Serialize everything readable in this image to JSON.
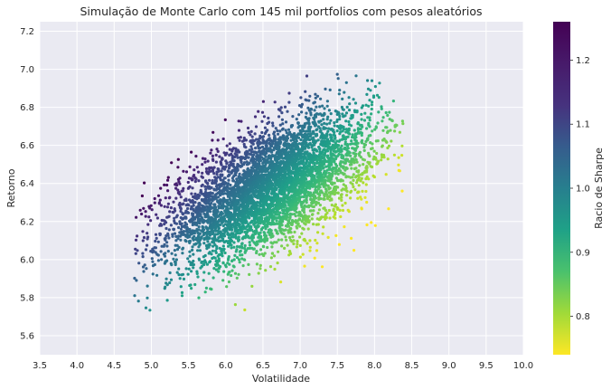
{
  "chart_data": {
    "type": "scatter",
    "title": "Simulação de Monte Carlo com 145 mil portfolios com pesos aleatórios",
    "xlabel": "Volatilidade",
    "ylabel": "Retorno",
    "xlim": [
      3.5,
      10.0
    ],
    "ylim": [
      5.5,
      7.25
    ],
    "xticks": [
      "3.5",
      "4.0",
      "4.5",
      "5.0",
      "5.5",
      "6.0",
      "6.5",
      "7.0",
      "7.5",
      "8.0",
      "8.5",
      "9.0",
      "9.5",
      "10.0"
    ],
    "yticks": [
      "5.6",
      "5.8",
      "6.0",
      "6.2",
      "6.4",
      "6.6",
      "6.8",
      "7.0",
      "7.2"
    ],
    "grid": true,
    "colormap": "viridis",
    "colorbar": {
      "label": "Racio de Sharpe",
      "range": [
        0.74,
        1.26
      ],
      "ticks": [
        "0.8",
        "0.9",
        "1.0",
        "1.1",
        "1.2"
      ]
    },
    "point_cloud": {
      "count_label": "145 mil",
      "volatility_center": 6.6,
      "return_center": 6.38,
      "volatility_sd": 0.68,
      "return_sd": 0.19,
      "correlation": 0.6,
      "volatility_range": [
        4.75,
        8.45
      ],
      "return_range": [
        5.63,
        7.0
      ]
    },
    "colors": {
      "plot_background": "#eaeaf2",
      "grid": "#ffffff",
      "text": "#262626"
    }
  }
}
